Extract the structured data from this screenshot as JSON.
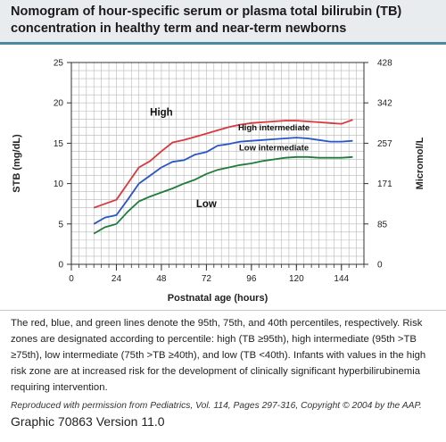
{
  "header": {
    "title_line1": "Nomogram of hour-specific serum or plasma total bilirubin (TB)",
    "title_line2": "concentration in healthy term and near-term newborns"
  },
  "caption": {
    "text": "The red, blue, and green lines denote the 95th, 75th, and 40th percentiles, respectively. Risk zones are designated according to percentile: high (TB ≥95th), high intermediate (95th >TB ≥75th), low intermediate (75th >TB ≥40th), and low (TB <40th). Infants with values in the high risk zone are at increased risk for the development of clinically significant hyperbilirubinemia requiring intervention."
  },
  "footer": {
    "credit": "Reproduced with permission from Pediatrics, Vol. 114, Pages 297-316, Copyright © 2004 by the AAP.",
    "graphic_id": "Graphic 70863 Version 11.0"
  },
  "chart_data": {
    "type": "line",
    "title": "",
    "xlabel": "Postnatal age (hours)",
    "ylabel": "STB (mg/dL)",
    "ylabel_right": "Micromol/L",
    "xlim": [
      0,
      156
    ],
    "ylim": [
      0,
      25
    ],
    "x_ticks": [
      0,
      24,
      48,
      72,
      96,
      120,
      144
    ],
    "y_ticks": [
      0,
      5,
      10,
      15,
      20,
      25
    ],
    "y_ticks_right": [
      {
        "value": 0,
        "label": "0"
      },
      {
        "value": 5,
        "label": "85"
      },
      {
        "value": 10,
        "label": "171"
      },
      {
        "value": 15,
        "label": "257"
      },
      {
        "value": 20,
        "label": "342"
      },
      {
        "value": 25,
        "label": "428"
      }
    ],
    "grid": true,
    "colors": {
      "p95": "#d9393e",
      "p75": "#2a55c8",
      "p40": "#1e7d3a"
    },
    "series": [
      {
        "key": "p95",
        "x": [
          12,
          18,
          24,
          30,
          36,
          42,
          48,
          54,
          60,
          66,
          72,
          78,
          84,
          90,
          96,
          102,
          108,
          114,
          120,
          126,
          132,
          138,
          144,
          150
        ],
        "values": [
          7.0,
          7.5,
          8.0,
          10.0,
          12.0,
          12.8,
          14.0,
          15.1,
          15.4,
          15.8,
          16.2,
          16.6,
          17.0,
          17.3,
          17.5,
          17.6,
          17.7,
          17.8,
          17.8,
          17.7,
          17.6,
          17.5,
          17.4,
          17.9
        ]
      },
      {
        "key": "p75",
        "x": [
          12,
          18,
          24,
          30,
          36,
          42,
          48,
          54,
          60,
          66,
          72,
          78,
          84,
          90,
          96,
          102,
          108,
          114,
          120,
          126,
          132,
          138,
          144,
          150
        ],
        "values": [
          5.0,
          5.8,
          6.1,
          8.0,
          10.0,
          11.0,
          12.0,
          12.7,
          12.9,
          13.6,
          13.9,
          14.7,
          14.9,
          15.2,
          15.3,
          15.4,
          15.5,
          15.6,
          15.7,
          15.6,
          15.4,
          15.2,
          15.2,
          15.3
        ]
      },
      {
        "key": "p40",
        "x": [
          12,
          18,
          24,
          30,
          36,
          42,
          48,
          54,
          60,
          66,
          72,
          78,
          84,
          90,
          96,
          102,
          108,
          114,
          120,
          126,
          132,
          138,
          144,
          150
        ],
        "values": [
          3.8,
          4.6,
          5.0,
          6.5,
          7.8,
          8.4,
          8.9,
          9.4,
          10.0,
          10.5,
          11.2,
          11.7,
          12.0,
          12.3,
          12.5,
          12.8,
          13.0,
          13.2,
          13.3,
          13.3,
          13.2,
          13.2,
          13.2,
          13.3
        ]
      }
    ],
    "zone_labels": [
      {
        "text": "High",
        "x": 48,
        "y": 18.4
      },
      {
        "text": "High intermediate",
        "x": 108,
        "y": 16.6
      },
      {
        "text": "Low intermediate",
        "x": 108,
        "y": 14.1
      },
      {
        "text": "Low",
        "x": 72,
        "y": 7.1
      }
    ]
  }
}
